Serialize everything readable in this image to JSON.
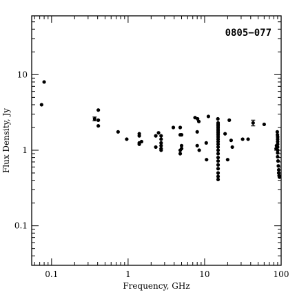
{
  "chart_data": {
    "type": "scatter",
    "title": "0805−077",
    "xlabel": "Frequency, GHz",
    "ylabel": "Flux Density, Jy",
    "x_scale": "log",
    "y_scale": "log",
    "xlim": [
      0.055,
      100
    ],
    "ylim": [
      0.03,
      60
    ],
    "xticks": [
      {
        "value": 0.1,
        "label": "0.1"
      },
      {
        "value": 1,
        "label": "1"
      },
      {
        "value": 10,
        "label": "10"
      },
      {
        "value": 100,
        "label": "100"
      }
    ],
    "yticks": [
      {
        "value": 0.1,
        "label": "0.1"
      },
      {
        "value": 1,
        "label": "1"
      },
      {
        "value": 10,
        "label": "10"
      }
    ],
    "grid": false,
    "marker_color": "#000000",
    "points": [
      {
        "x": 0.074,
        "y": 4.0
      },
      {
        "x": 0.08,
        "y": 8.0
      },
      {
        "x": 0.365,
        "y": 2.6
      },
      {
        "x": 0.408,
        "y": 3.4
      },
      {
        "x": 0.408,
        "y": 2.5
      },
      {
        "x": 0.408,
        "y": 2.1
      },
      {
        "x": 0.74,
        "y": 1.75
      },
      {
        "x": 0.96,
        "y": 1.4
      },
      {
        "x": 1.4,
        "y": 1.65
      },
      {
        "x": 1.4,
        "y": 1.55
      },
      {
        "x": 1.4,
        "y": 1.25
      },
      {
        "x": 1.4,
        "y": 1.2
      },
      {
        "x": 1.5,
        "y": 1.3
      },
      {
        "x": 2.3,
        "y": 1.55
      },
      {
        "x": 2.3,
        "y": 1.1
      },
      {
        "x": 2.5,
        "y": 1.7
      },
      {
        "x": 2.7,
        "y": 1.55
      },
      {
        "x": 2.7,
        "y": 1.4
      },
      {
        "x": 2.7,
        "y": 1.25
      },
      {
        "x": 2.7,
        "y": 1.15
      },
      {
        "x": 2.7,
        "y": 1.05
      },
      {
        "x": 2.7,
        "y": 1.0
      },
      {
        "x": 3.9,
        "y": 2.0
      },
      {
        "x": 4.8,
        "y": 2.0
      },
      {
        "x": 4.8,
        "y": 1.6
      },
      {
        "x": 5.0,
        "y": 1.6
      },
      {
        "x": 5.0,
        "y": 1.15
      },
      {
        "x": 5.0,
        "y": 1.05
      },
      {
        "x": 4.8,
        "y": 1.0
      },
      {
        "x": 4.8,
        "y": 0.9
      },
      {
        "x": 7.5,
        "y": 2.7
      },
      {
        "x": 8.0,
        "y": 1.75
      },
      {
        "x": 8.1,
        "y": 2.6
      },
      {
        "x": 8.4,
        "y": 2.4
      },
      {
        "x": 8.0,
        "y": 1.15
      },
      {
        "x": 8.5,
        "y": 1.0
      },
      {
        "x": 10.5,
        "y": 1.25
      },
      {
        "x": 10.6,
        "y": 0.75
      },
      {
        "x": 11.2,
        "y": 2.8
      },
      {
        "x": 14.9,
        "y": 2.6
      },
      {
        "x": 15,
        "y": 2.3
      },
      {
        "x": 15,
        "y": 2.2
      },
      {
        "x": 15,
        "y": 2.1
      },
      {
        "x": 15,
        "y": 2.0
      },
      {
        "x": 15,
        "y": 1.9
      },
      {
        "x": 15,
        "y": 1.8
      },
      {
        "x": 15,
        "y": 1.7
      },
      {
        "x": 15,
        "y": 1.6
      },
      {
        "x": 15,
        "y": 1.5
      },
      {
        "x": 15,
        "y": 1.4
      },
      {
        "x": 15,
        "y": 1.3
      },
      {
        "x": 15,
        "y": 1.2
      },
      {
        "x": 15,
        "y": 1.1
      },
      {
        "x": 15,
        "y": 1.0
      },
      {
        "x": 15,
        "y": 0.9
      },
      {
        "x": 15,
        "y": 0.8
      },
      {
        "x": 15,
        "y": 0.72
      },
      {
        "x": 15,
        "y": 0.64
      },
      {
        "x": 15,
        "y": 0.57
      },
      {
        "x": 15,
        "y": 0.5
      },
      {
        "x": 15,
        "y": 0.45
      },
      {
        "x": 15,
        "y": 0.41
      },
      {
        "x": 18.5,
        "y": 1.65
      },
      {
        "x": 20,
        "y": 0.75
      },
      {
        "x": 21,
        "y": 2.5
      },
      {
        "x": 22.2,
        "y": 1.35
      },
      {
        "x": 23,
        "y": 1.1
      },
      {
        "x": 31.4,
        "y": 1.4
      },
      {
        "x": 37,
        "y": 1.4
      },
      {
        "x": 43,
        "y": 2.3
      },
      {
        "x": 60,
        "y": 2.2
      },
      {
        "x": 86,
        "y": 1.05
      },
      {
        "x": 87,
        "y": 1.15
      },
      {
        "x": 89,
        "y": 1.75
      },
      {
        "x": 89.5,
        "y": 1.6
      },
      {
        "x": 90,
        "y": 1.5
      },
      {
        "x": 90,
        "y": 1.4
      },
      {
        "x": 90,
        "y": 1.3
      },
      {
        "x": 90,
        "y": 1.2
      },
      {
        "x": 90,
        "y": 1.1
      },
      {
        "x": 90,
        "y": 1.0
      },
      {
        "x": 90,
        "y": 0.92
      },
      {
        "x": 90,
        "y": 0.82
      },
      {
        "x": 91,
        "y": 0.72
      },
      {
        "x": 92,
        "y": 0.62
      },
      {
        "x": 93,
        "y": 0.55
      },
      {
        "x": 93,
        "y": 0.5
      },
      {
        "x": 94,
        "y": 0.46
      },
      {
        "x": 95,
        "y": 0.44
      }
    ],
    "error_bars": [
      {
        "x": 0.365,
        "y": 2.6,
        "ylow": 2.45,
        "yhigh": 2.75
      },
      {
        "x": 43,
        "y": 2.3,
        "ylow": 2.1,
        "yhigh": 2.5
      }
    ]
  }
}
